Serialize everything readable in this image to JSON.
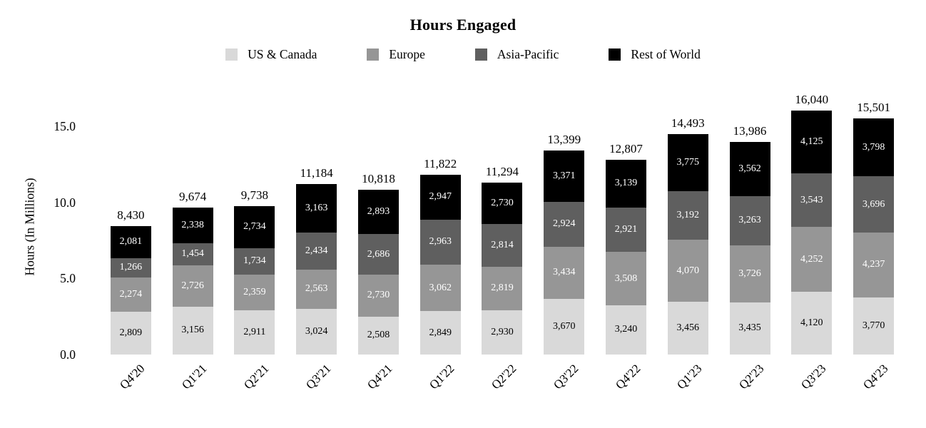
{
  "title": "Hours Engaged",
  "chart_data": {
    "type": "bar",
    "stacked": true,
    "title": "Hours Engaged",
    "xlabel": "",
    "ylabel": "Hours (In Millions)",
    "grid": false,
    "legend_position": "top-center",
    "ylim_millions": [
      0.0,
      17.5
    ],
    "y_tick_labels": [
      "0.0",
      "5.0",
      "10.0",
      "15.0"
    ],
    "y_tick_values_millions": [
      0.0,
      5.0,
      10.0,
      15.0
    ],
    "categories": [
      "Q4'20",
      "Q1'21",
      "Q2'21",
      "Q3'21",
      "Q4'21",
      "Q1'22",
      "Q2'22",
      "Q3'22",
      "Q4'22",
      "Q1'23",
      "Q2'23",
      "Q3'23",
      "Q4'23"
    ],
    "series": [
      {
        "name": "US & Canada",
        "color": "#d9d9d9",
        "label_color": "#000000",
        "values": [
          2809,
          3156,
          2911,
          3024,
          2508,
          2849,
          2930,
          3670,
          3240,
          3456,
          3435,
          4120,
          3770
        ]
      },
      {
        "name": "Europe",
        "color": "#969696",
        "label_color": "#ffffff",
        "values": [
          2274,
          2726,
          2359,
          2563,
          2730,
          3062,
          2819,
          3434,
          3508,
          4070,
          3726,
          4252,
          4237
        ]
      },
      {
        "name": "Asia-Pacific",
        "color": "#5f5f5f",
        "label_color": "#ffffff",
        "values": [
          1266,
          1454,
          1734,
          2434,
          2686,
          2963,
          2814,
          2924,
          2921,
          3192,
          3263,
          3543,
          3696
        ]
      },
      {
        "name": "Rest of World",
        "color": "#000000",
        "label_color": "#ffffff",
        "values": [
          2081,
          2338,
          2734,
          3163,
          2893,
          2947,
          2730,
          3371,
          3139,
          3775,
          3562,
          4125,
          3798
        ]
      }
    ],
    "totals": [
      8430,
      9674,
      9738,
      11184,
      10818,
      11822,
      11294,
      13399,
      12807,
      14493,
      13986,
      16040,
      15501
    ],
    "total_labels": [
      "8,430",
      "9,674",
      "9,738",
      "11,184",
      "10,818",
      "11,822",
      "11,294",
      "13,399",
      "12,807",
      "14,493",
      "13,986",
      "16,040",
      "15,501"
    ]
  }
}
